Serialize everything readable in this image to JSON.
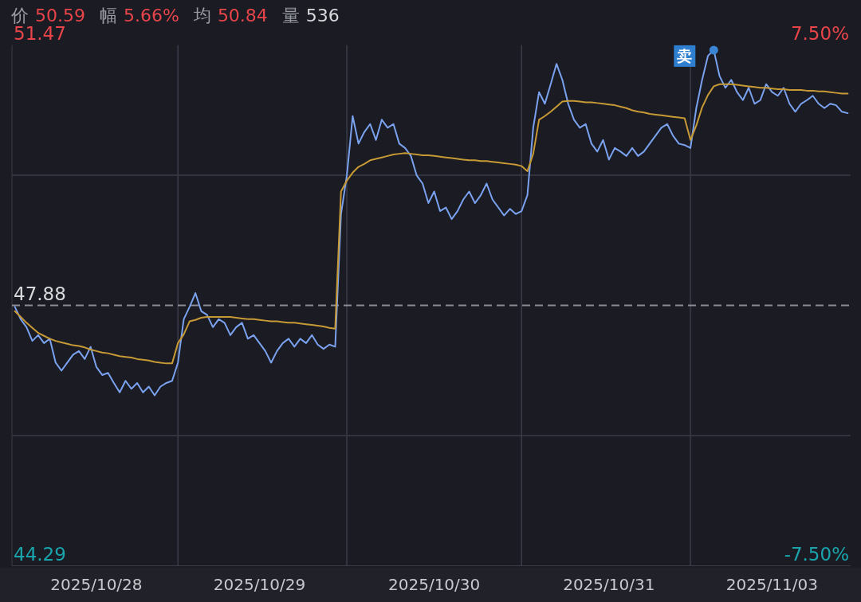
{
  "chart_data": {
    "type": "line",
    "annotations": [
      "价",
      "50.59",
      "幅",
      "5.66%",
      "均",
      "50.84",
      "量",
      "536",
      "卖"
    ],
    "categories": [
      null,
      null,
      null,
      null,
      null,
      null,
      null,
      null,
      null,
      null,
      null,
      null,
      null,
      null,
      "2025/10/28",
      null,
      null,
      null,
      null,
      null,
      null,
      null,
      null,
      null,
      null,
      null,
      null,
      null,
      null,
      null,
      null,
      null,
      null,
      null,
      null,
      null,
      null,
      null,
      null,
      null,
      null,
      null,
      "2025/10/29",
      null,
      null,
      null,
      null,
      null,
      null,
      null,
      null,
      null,
      null,
      null,
      null,
      null,
      null,
      null,
      null,
      null,
      null,
      null,
      null,
      null,
      null,
      null,
      null,
      null,
      null,
      null,
      null,
      null,
      "2025/10/30",
      null,
      null,
      null,
      null,
      null,
      null,
      null,
      null,
      null,
      null,
      null,
      null,
      null,
      null,
      null,
      null,
      null,
      null,
      null,
      null,
      null,
      null,
      null,
      null,
      null,
      null,
      null,
      null,
      null,
      "2025/10/31",
      null,
      null,
      null,
      null,
      null,
      null,
      null,
      null,
      null,
      null,
      null,
      null,
      null,
      null,
      null,
      null,
      null,
      null,
      null,
      null,
      null,
      null,
      null,
      null,
      null,
      null,
      null,
      "2025/11/03",
      null,
      null,
      null,
      null,
      null,
      null,
      null,
      null,
      null,
      null,
      null,
      null,
      null
    ],
    "series": [
      {
        "color": "#7aa2ef",
        "values": [
          47.86,
          47.69,
          47.58,
          47.39,
          47.47,
          47.36,
          47.42,
          47.09,
          46.98,
          47.09,
          47.2,
          47.25,
          47.14,
          47.31,
          47.03,
          46.92,
          46.95,
          46.81,
          46.68,
          46.84,
          46.73,
          46.81,
          46.68,
          46.76,
          46.64,
          46.76,
          46.81,
          46.84,
          47.09,
          47.69,
          47.86,
          48.05,
          47.8,
          47.75,
          47.58,
          47.69,
          47.64,
          47.47,
          47.58,
          47.64,
          47.42,
          47.47,
          47.36,
          47.25,
          47.09,
          47.25,
          47.36,
          47.42,
          47.31,
          47.42,
          47.36,
          47.47,
          47.34,
          47.28,
          47.34,
          47.31,
          49.14,
          49.67,
          50.49,
          50.11,
          50.27,
          50.38,
          50.16,
          50.44,
          50.33,
          50.38,
          50.11,
          50.05,
          49.94,
          49.67,
          49.56,
          49.29,
          49.45,
          49.18,
          49.23,
          49.07,
          49.18,
          49.34,
          49.45,
          49.29,
          49.4,
          49.56,
          49.34,
          49.23,
          49.12,
          49.21,
          49.14,
          49.18,
          49.4,
          50.33,
          50.82,
          50.66,
          50.93,
          51.21,
          50.99,
          50.66,
          50.44,
          50.33,
          50.38,
          50.11,
          50.0,
          50.16,
          49.89,
          50.05,
          50.0,
          49.94,
          50.05,
          49.94,
          50.0,
          50.11,
          50.22,
          50.33,
          50.38,
          50.22,
          50.11,
          50.09,
          50.05,
          50.6,
          50.99,
          51.32,
          51.4,
          51.04,
          50.88,
          50.99,
          50.82,
          50.71,
          50.88,
          50.66,
          50.71,
          50.93,
          50.82,
          50.77,
          50.88,
          50.66,
          50.55,
          50.66,
          50.71,
          50.77,
          50.66,
          50.6,
          50.66,
          50.64,
          50.55,
          50.53
        ]
      },
      {
        "color": "#c89a36",
        "values": [
          47.8,
          47.72,
          47.64,
          47.57,
          47.5,
          47.46,
          47.42,
          47.39,
          47.37,
          47.35,
          47.33,
          47.32,
          47.3,
          47.27,
          47.25,
          47.23,
          47.22,
          47.2,
          47.18,
          47.17,
          47.16,
          47.14,
          47.13,
          47.12,
          47.1,
          47.09,
          47.08,
          47.08,
          47.36,
          47.48,
          47.66,
          47.68,
          47.71,
          47.72,
          47.72,
          47.72,
          47.72,
          47.72,
          47.71,
          47.7,
          47.69,
          47.69,
          47.68,
          47.67,
          47.66,
          47.66,
          47.65,
          47.64,
          47.64,
          47.63,
          47.62,
          47.61,
          47.6,
          47.59,
          47.57,
          47.56,
          49.45,
          49.6,
          49.71,
          49.79,
          49.83,
          49.88,
          49.9,
          49.92,
          49.94,
          49.96,
          49.97,
          49.98,
          49.97,
          49.96,
          49.95,
          49.95,
          49.94,
          49.93,
          49.92,
          49.91,
          49.9,
          49.89,
          49.88,
          49.88,
          49.87,
          49.87,
          49.86,
          49.85,
          49.84,
          49.83,
          49.82,
          49.8,
          49.73,
          49.97,
          50.44,
          50.49,
          50.55,
          50.62,
          50.69,
          50.7,
          50.7,
          50.69,
          50.68,
          50.68,
          50.67,
          50.66,
          50.65,
          50.64,
          50.62,
          50.6,
          50.57,
          50.55,
          50.54,
          50.52,
          50.51,
          50.5,
          50.49,
          50.48,
          50.47,
          50.46,
          50.16,
          50.36,
          50.61,
          50.78,
          50.9,
          50.93,
          50.93,
          50.93,
          50.92,
          50.91,
          50.9,
          50.89,
          50.88,
          50.88,
          50.87,
          50.86,
          50.86,
          50.85,
          50.85,
          50.85,
          50.84,
          50.84,
          50.83,
          50.83,
          50.82,
          50.81,
          50.8,
          50.8
        ]
      }
    ],
    "ylim": [
      44.29,
      51.47
    ],
    "yticks": [
      44.29,
      {
        "value": 46.085,
        "label": null
      },
      47.88,
      {
        "value": 49.675,
        "label": null
      },
      51.47
    ],
    "y2lim": [
      -7.5,
      7.5
    ],
    "y2ticks": [
      {
        "value": -7.5,
        "label": "-7.50%"
      },
      {
        "value": 7.5,
        "label": "7.50%"
      }
    ],
    "ref_lines": [
      {
        "axis": "y",
        "value": 47.88,
        "line_style": "dashed"
      }
    ],
    "grid": true
  }
}
